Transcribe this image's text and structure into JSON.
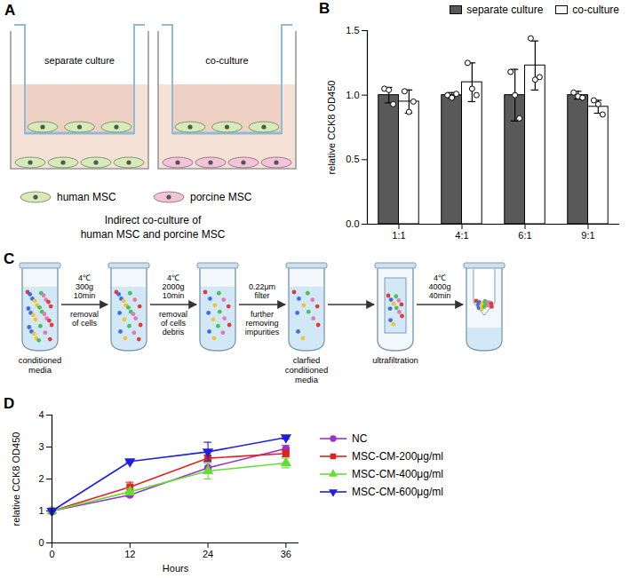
{
  "chart_data": [
    {
      "panel": "B",
      "type": "bar",
      "categories": [
        "1:1",
        "4:1",
        "6:1",
        "9:1"
      ],
      "y_label": "relative CCK8 OD450",
      "ylim": [
        0,
        1.5
      ],
      "yticks": [
        {
          "value": 0,
          "label": "0.0"
        },
        0.5,
        {
          "value": 1,
          "label": "1.0"
        },
        1.5
      ],
      "legend": "top",
      "series": [
        {
          "name": "separate culture",
          "color": "#595959",
          "values": [
            1,
            1,
            1,
            1
          ],
          "errors": [
            0.06,
            0.02,
            0.2,
            0.03
          ],
          "points": [
            [
              1.05,
              1.04,
              0.93
            ],
            [
              1.0,
              0.98,
              1.01
            ],
            [
              1.18,
              1.0,
              0.82
            ],
            [
              1.02,
              0.99,
              0.98
            ]
          ]
        },
        {
          "name": "co-culture",
          "color": "#ffffff",
          "values": [
            0.95,
            1.1,
            1.23,
            0.91
          ],
          "errors": [
            0.09,
            0.15,
            0.19,
            0.05
          ],
          "points": [
            [
              1.03,
              0.87,
              0.95
            ],
            [
              1.25,
              1.05,
              1.0
            ],
            [
              1.44,
              1.12,
              1.14
            ],
            [
              0.96,
              0.93,
              0.85
            ]
          ]
        }
      ]
    },
    {
      "panel": "D",
      "type": "line",
      "x": [
        0,
        12,
        24,
        36
      ],
      "x_label": "Hours",
      "y_label": "relative CCK8 OD450",
      "xlim": [
        0,
        38
      ],
      "xticks": [
        0,
        12,
        24,
        36
      ],
      "ylim": [
        0,
        4
      ],
      "yticks": [
        0,
        1,
        2,
        3,
        4
      ],
      "legend": "right",
      "series": [
        {
          "name": "NC",
          "color": "#9933cc",
          "marker": "circle",
          "values": [
            1,
            1.5,
            2.35,
            2.95
          ],
          "errors": [
            0,
            0.05,
            0.15,
            0.1
          ]
        },
        {
          "name": "MSC-CM-200μg/ml",
          "color": "#e0211f",
          "marker": "square",
          "values": [
            1,
            1.75,
            2.65,
            2.8
          ],
          "errors": [
            0,
            0.15,
            0.1,
            0.1
          ]
        },
        {
          "name": "MSC-CM-400μg/ml",
          "color": "#66dd33",
          "marker": "triangle-up",
          "values": [
            1,
            1.6,
            2.25,
            2.5
          ],
          "errors": [
            0,
            0.1,
            0.25,
            0.15
          ]
        },
        {
          "name": "MSC-CM-600μg/ml",
          "color": "#1f1fdd",
          "marker": "triangle-down",
          "values": [
            1,
            2.55,
            2.85,
            3.3
          ],
          "errors": [
            0,
            0.03,
            0.3,
            0.05
          ]
        }
      ]
    }
  ],
  "diagrams": [
    {
      "panel": "A",
      "wells": [
        {
          "title": "separate culture",
          "bottom_cells": "human MSC"
        },
        {
          "title": "co-culture",
          "bottom_cells": "porcine MSC"
        }
      ],
      "insert_cells": "human MSC",
      "legend": [
        {
          "label": "human MSC",
          "color": "#d6ecb8"
        },
        {
          "label": "porcine MSC",
          "color": "#f3c4d8"
        }
      ],
      "caption": [
        "Indirect co-culture of",
        "human MSC and porcine MSC"
      ]
    },
    {
      "panel": "C",
      "tube_labels": [
        [
          "conditioned",
          "media"
        ],
        null,
        null,
        [
          "clarfied",
          "conditioned",
          "media"
        ],
        [
          "ultrafiltration"
        ],
        null
      ],
      "steps": [
        {
          "above": [
            "4℃",
            "300g",
            "10min"
          ],
          "below": [
            "removal",
            "of cells"
          ]
        },
        {
          "above": [
            "4℃",
            "2000g",
            "10min"
          ],
          "below": [
            "removal",
            "of cells",
            "debris"
          ]
        },
        {
          "above": [
            "0.22μm",
            "filter"
          ],
          "below": [
            "further",
            "removing",
            "impurities"
          ]
        },
        {
          "above": [],
          "below": []
        },
        {
          "above": [
            "4℃",
            "4000g",
            "40min"
          ],
          "below": []
        }
      ]
    }
  ]
}
